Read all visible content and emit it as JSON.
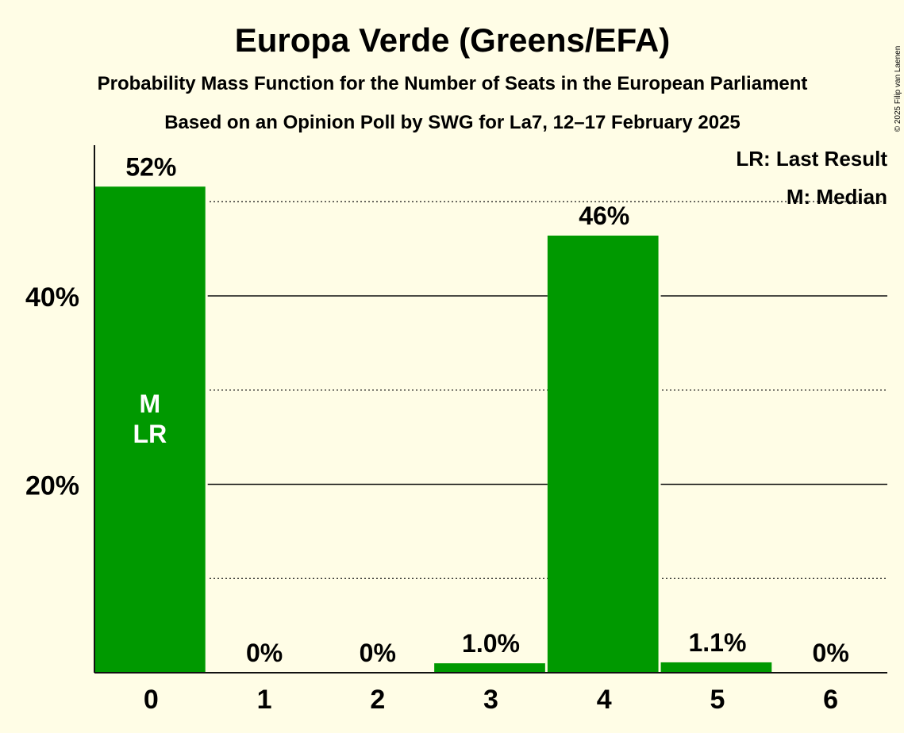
{
  "chart_data": {
    "type": "bar",
    "title": "Europa Verde (Greens/EFA)",
    "subtitle": "Probability Mass Function for the Number of Seats in the European Parliament",
    "subtitle2": "Based on an Opinion Poll by SWG for La7, 12–17 February 2025",
    "copyright": "© 2025 Filip van Laenen",
    "categories": [
      "0",
      "1",
      "2",
      "3",
      "4",
      "5",
      "6"
    ],
    "values": [
      51.6,
      0,
      0,
      1.0,
      46.4,
      1.1,
      0
    ],
    "value_labels": [
      "52%",
      "0%",
      "0%",
      "1.0%",
      "46%",
      "1.1%",
      "0%"
    ],
    "ylim": [
      0,
      56
    ],
    "y_ticks": [
      {
        "value": 20,
        "label": "20%"
      },
      {
        "value": 40,
        "label": "40%"
      }
    ],
    "minor_gridlines": [
      10,
      30,
      50
    ],
    "bar_color": "#009900",
    "markers": [
      {
        "category": "0",
        "lines": [
          "M",
          "LR"
        ]
      }
    ],
    "legend": [
      "LR: Last Result",
      "M: Median"
    ],
    "legend_position": "top-right"
  }
}
